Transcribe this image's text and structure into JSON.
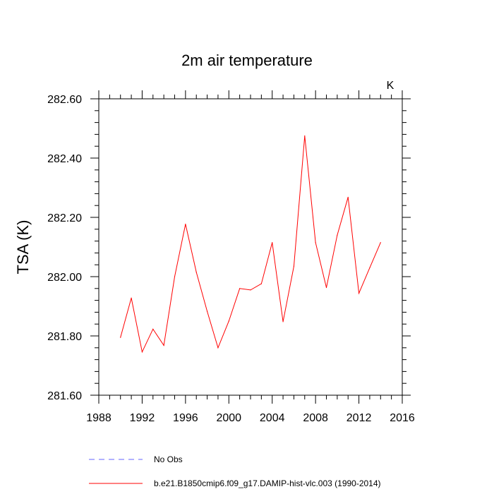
{
  "chart_data": {
    "type": "line",
    "title": "2m air temperature",
    "units_label": "K",
    "xlabel": "",
    "ylabel": "TSA  (K)",
    "xlim": [
      1988,
      2016
    ],
    "ylim": [
      281.6,
      282.6
    ],
    "x_ticks": [
      1988,
      1992,
      1996,
      2000,
      2004,
      2008,
      2012,
      2016
    ],
    "x_tick_labels": [
      "1988",
      "1992",
      "1996",
      "2000",
      "2004",
      "2008",
      "2012",
      "2016"
    ],
    "y_ticks": [
      281.6,
      281.8,
      282.0,
      282.2,
      282.4,
      282.6
    ],
    "y_tick_labels": [
      "281.60",
      "281.80",
      "282.00",
      "282.20",
      "282.40",
      "282.60"
    ],
    "grid": false,
    "series": [
      {
        "name": "b.e21.B1850cmip6.f09_g17.DAMIP-hist-vlc.003 (1990-2014)",
        "color": "#ff0000",
        "style": "solid",
        "x": [
          1990,
          1991,
          1992,
          1993,
          1994,
          1995,
          1996,
          1997,
          1998,
          1999,
          2000,
          2001,
          2002,
          2003,
          2004,
          2005,
          2006,
          2007,
          2008,
          2009,
          2010,
          2011,
          2012,
          2013,
          2014
        ],
        "values": [
          281.795,
          281.928,
          281.746,
          281.823,
          281.768,
          282.0,
          282.177,
          282.015,
          281.883,
          281.76,
          281.85,
          281.96,
          281.955,
          281.976,
          282.115,
          281.848,
          282.035,
          282.475,
          282.115,
          281.963,
          282.14,
          282.268,
          281.944,
          282.03,
          282.115
        ]
      }
    ],
    "legend": [
      {
        "label": "No Obs",
        "color": "#6666ff",
        "style": "dashed"
      },
      {
        "label": "b.e21.B1850cmip6.f09_g17.DAMIP-hist-vlc.003 (1990-2014)",
        "color": "#ff0000",
        "style": "solid"
      }
    ],
    "legend_position": "bottom-left"
  }
}
